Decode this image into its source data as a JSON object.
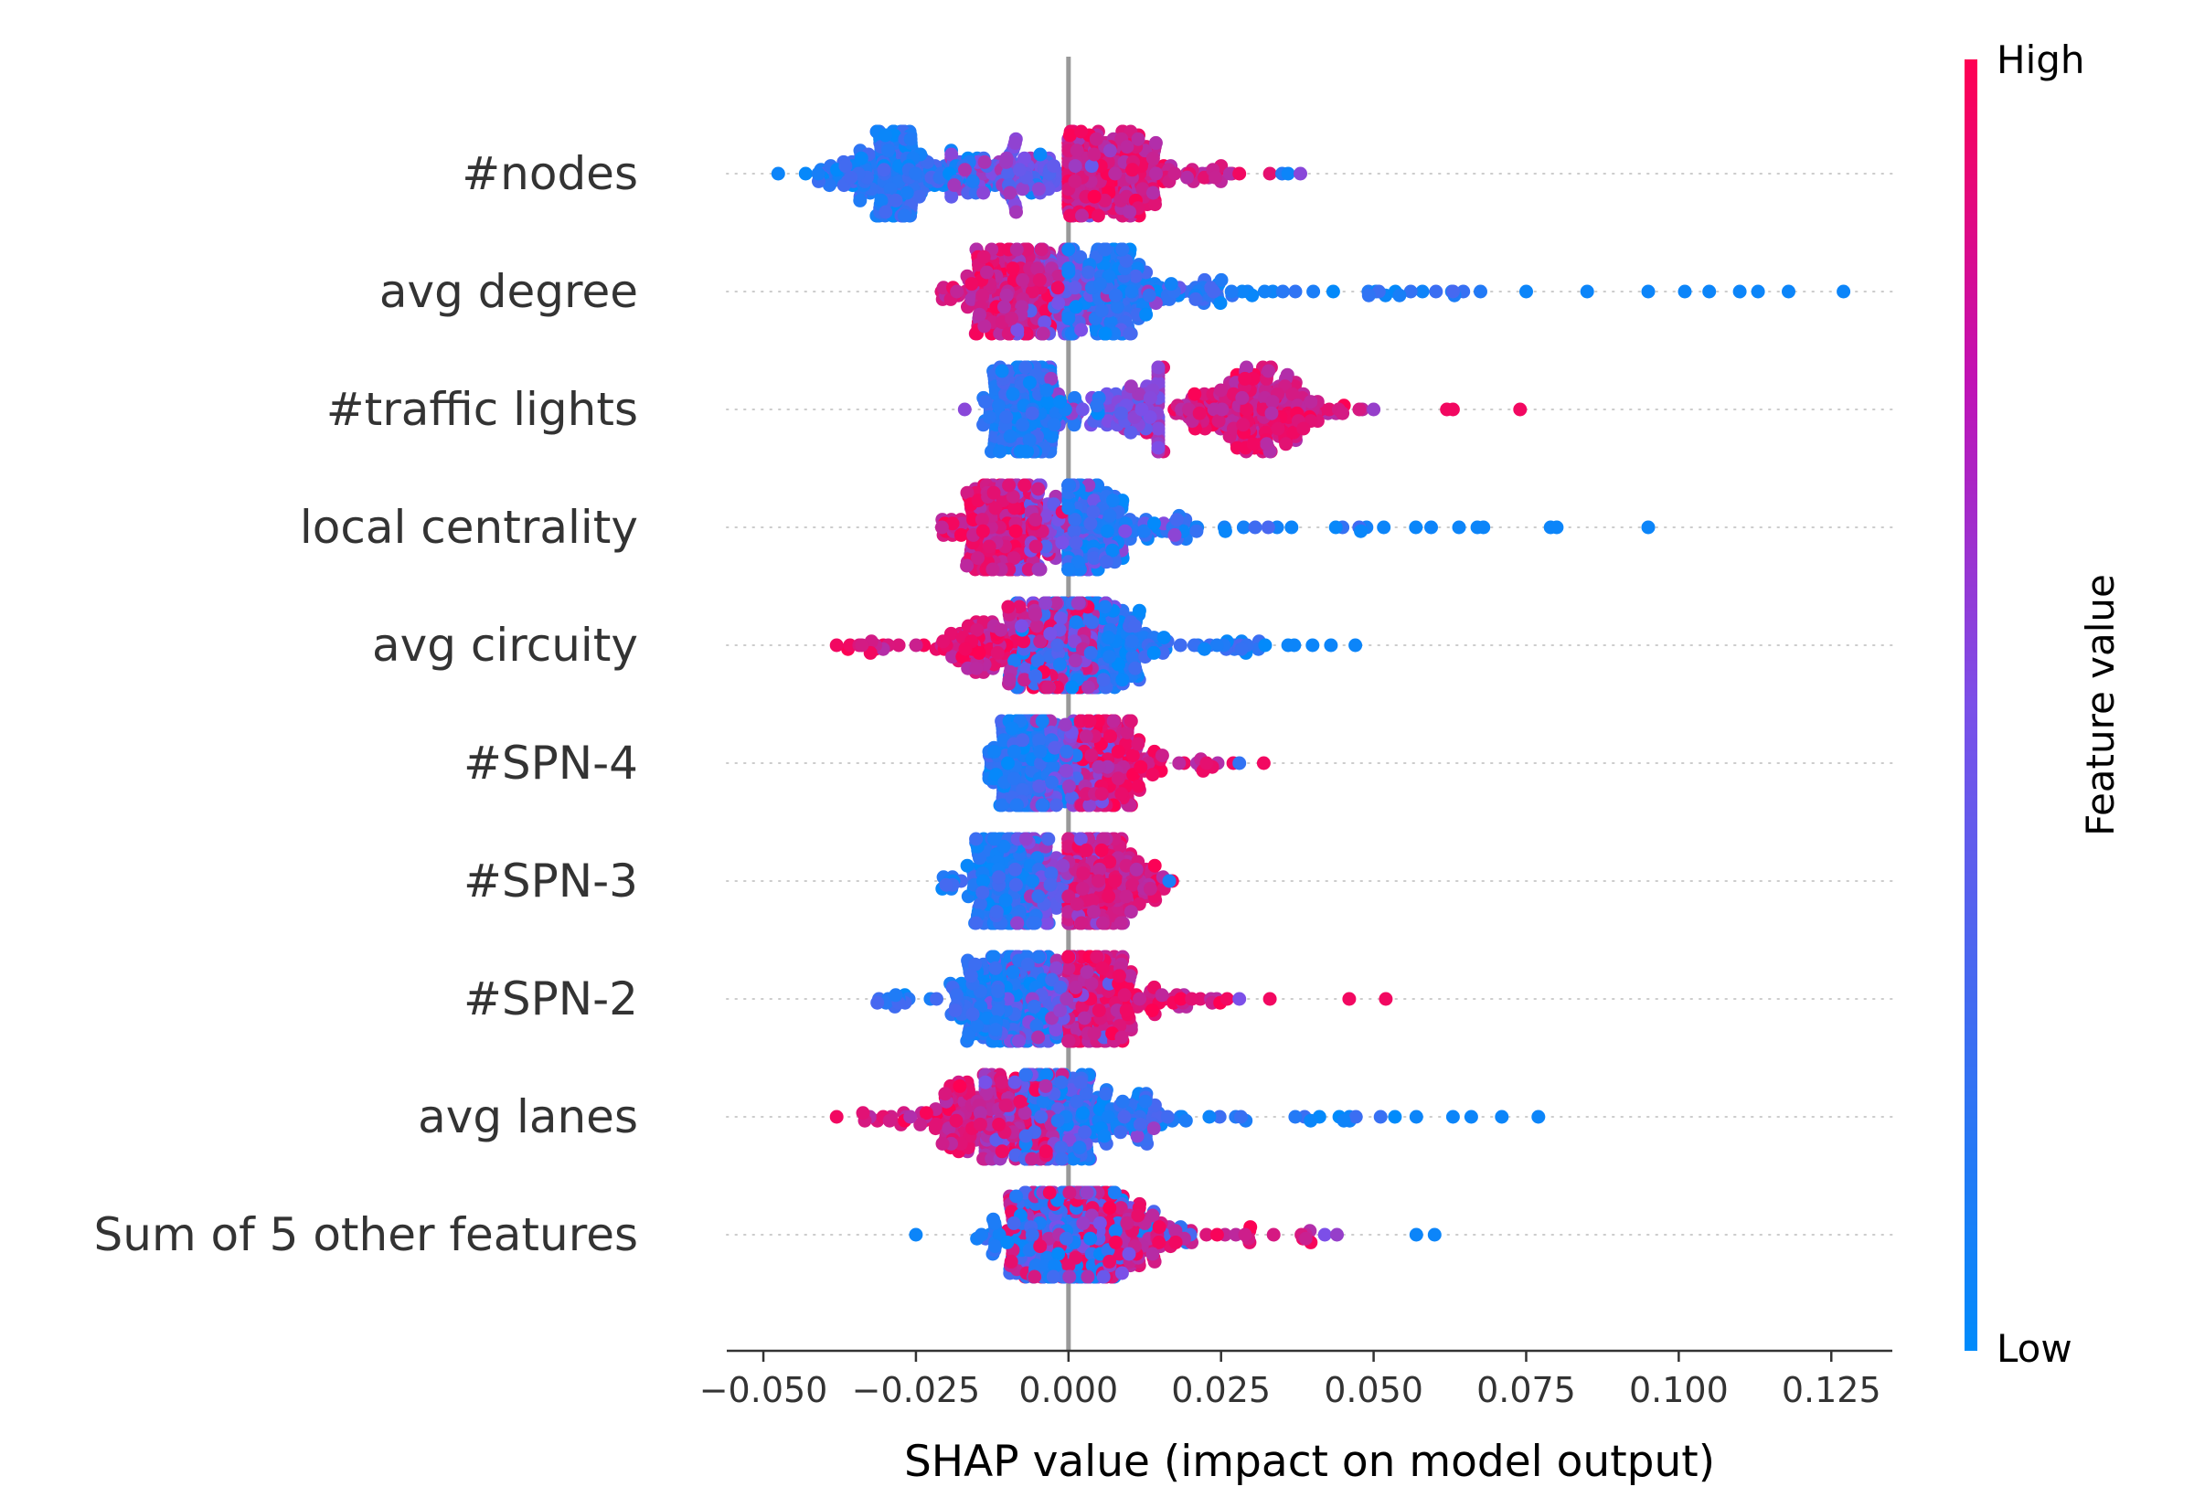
{
  "chart_data": {
    "type": "scatter",
    "subtype": "beeswarm",
    "xlabel": "SHAP value (impact on model output)",
    "xlim": [
      -0.056,
      0.135
    ],
    "x_ticks": [
      -0.05,
      -0.025,
      0.0,
      0.025,
      0.05,
      0.075,
      0.1,
      0.125
    ],
    "x_tick_labels": [
      "−0.050",
      "−0.025",
      "0.000",
      "0.025",
      "0.050",
      "0.075",
      "0.100",
      "0.125"
    ],
    "zero_line": 0.0,
    "grid": false,
    "colorbar": {
      "label": "Feature value",
      "high_label": "High",
      "low_label": "Low",
      "low_color": "#008bfb",
      "high_color": "#ff0052"
    },
    "features": [
      {
        "name": "#nodes",
        "low_range": [
          -0.048,
          0.0
        ],
        "low_dense": [
          -0.029,
          -0.027
        ],
        "high_range": [
          0.0,
          0.027
        ],
        "high_dense": [
          0.004,
          0.01
        ],
        "outliers": [
          {
            "x": 0.028,
            "v": 0.95
          },
          {
            "x": 0.033,
            "v": 0.9
          },
          {
            "x": 0.035,
            "v": 0.15
          },
          {
            "x": 0.036,
            "v": 0.05
          },
          {
            "x": 0.038,
            "v": 0.55
          }
        ]
      },
      {
        "name": "avg degree",
        "low_range": [
          0.0,
          0.069
        ],
        "low_dense": [
          0.007,
          0.009
        ],
        "high_range": [
          -0.021,
          0.0
        ],
        "high_dense": [
          -0.011,
          -0.008
        ],
        "outliers": [
          {
            "x": 0.075,
            "v": 0.05
          },
          {
            "x": 0.085,
            "v": 0.05
          },
          {
            "x": 0.095,
            "v": 0.05
          },
          {
            "x": 0.101,
            "v": 0.05
          },
          {
            "x": 0.105,
            "v": 0.05
          },
          {
            "x": 0.11,
            "v": 0.05
          },
          {
            "x": 0.113,
            "v": 0.05
          },
          {
            "x": 0.118,
            "v": 0.05
          },
          {
            "x": 0.127,
            "v": 0.05
          }
        ]
      },
      {
        "name": "#traffic lights",
        "low_range": [
          -0.014,
          0.005
        ],
        "low_dense": [
          -0.008,
          -0.006
        ],
        "high_range": [
          0.012,
          0.049
        ],
        "high_dense": [
          0.027,
          0.033
        ],
        "outliers": [
          {
            "x": -0.017,
            "v": 0.55
          },
          {
            "x": 0.012,
            "v": 0.5
          },
          {
            "x": 0.05,
            "v": 0.6
          },
          {
            "x": 0.062,
            "v": 0.95
          },
          {
            "x": 0.063,
            "v": 0.95
          },
          {
            "x": 0.074,
            "v": 0.95
          }
        ]
      },
      {
        "name": "local centrality",
        "low_range": [
          0.0,
          0.062
        ],
        "low_dense": [
          0.001,
          0.004
        ],
        "high_range": [
          -0.021,
          0.0
        ],
        "high_dense": [
          -0.012,
          -0.009
        ],
        "outliers": [
          {
            "x": 0.064,
            "v": 0.05
          },
          {
            "x": 0.067,
            "v": 0.05
          },
          {
            "x": 0.068,
            "v": 0.05
          },
          {
            "x": 0.079,
            "v": 0.05
          },
          {
            "x": 0.08,
            "v": 0.05
          },
          {
            "x": 0.095,
            "v": 0.05
          }
        ]
      },
      {
        "name": "avg circuity",
        "low_range": [
          -0.01,
          0.035
        ],
        "low_dense": [
          0.001,
          0.006
        ],
        "high_range": [
          -0.037,
          0.004
        ],
        "high_dense": [
          -0.01,
          -0.002
        ],
        "outliers": [
          {
            "x": -0.038,
            "v": 0.95
          },
          {
            "x": 0.036,
            "v": 0.05
          },
          {
            "x": 0.037,
            "v": 0.05
          },
          {
            "x": 0.04,
            "v": 0.05
          },
          {
            "x": 0.043,
            "v": 0.05
          },
          {
            "x": 0.047,
            "v": 0.05
          }
        ]
      },
      {
        "name": "#SPN-4",
        "low_range": [
          -0.013,
          0.003
        ],
        "low_dense": [
          -0.008,
          -0.006
        ],
        "high_range": [
          0.002,
          0.025
        ],
        "high_dense": [
          0.003,
          0.008
        ],
        "outliers": [
          {
            "x": 0.027,
            "v": 0.95
          },
          {
            "x": 0.028,
            "v": 0.2
          },
          {
            "x": 0.032,
            "v": 0.95
          }
        ]
      },
      {
        "name": "#SPN-3",
        "low_range": [
          -0.021,
          0.0
        ],
        "low_dense": [
          -0.011,
          -0.009
        ],
        "high_range": [
          0.0,
          0.016
        ],
        "high_dense": [
          0.002,
          0.006
        ],
        "outliers": [
          {
            "x": 0.017,
            "v": 0.95
          },
          {
            "x": 0.0165,
            "v": 0.1
          }
        ]
      },
      {
        "name": "#SPN-2",
        "low_range": [
          -0.032,
          0.0
        ],
        "low_dense": [
          -0.012,
          -0.009
        ],
        "high_range": [
          0.0,
          0.025
        ],
        "high_dense": [
          0.001,
          0.006
        ],
        "outliers": [
          {
            "x": 0.026,
            "v": 0.95
          },
          {
            "x": 0.028,
            "v": 0.5
          },
          {
            "x": 0.033,
            "v": 0.95
          },
          {
            "x": 0.046,
            "v": 0.95
          },
          {
            "x": 0.052,
            "v": 0.95
          }
        ]
      },
      {
        "name": "avg lanes",
        "low_range": [
          -0.007,
          0.055
        ],
        "low_dense": [
          -0.004,
          0.004
        ],
        "high_range": [
          -0.034,
          -0.001
        ],
        "high_dense": [
          -0.015,
          -0.008
        ],
        "outliers": [
          {
            "x": -0.038,
            "v": 0.95
          },
          {
            "x": 0.057,
            "v": 0.05
          },
          {
            "x": 0.063,
            "v": 0.05
          },
          {
            "x": 0.066,
            "v": 0.05
          },
          {
            "x": 0.071,
            "v": 0.05
          },
          {
            "x": 0.077,
            "v": 0.05
          }
        ]
      },
      {
        "name": "Sum of 5 other features",
        "low_range": [
          -0.017,
          0.02
        ],
        "low_dense": [
          -0.004,
          0.0
        ],
        "high_range": [
          -0.01,
          0.04
        ],
        "high_dense": [
          0.001,
          0.007
        ],
        "outliers": [
          {
            "x": -0.025,
            "v": 0.05
          },
          {
            "x": 0.042,
            "v": 0.5
          },
          {
            "x": 0.044,
            "v": 0.6
          },
          {
            "x": 0.057,
            "v": 0.05
          },
          {
            "x": 0.06,
            "v": 0.05
          }
        ]
      }
    ]
  }
}
